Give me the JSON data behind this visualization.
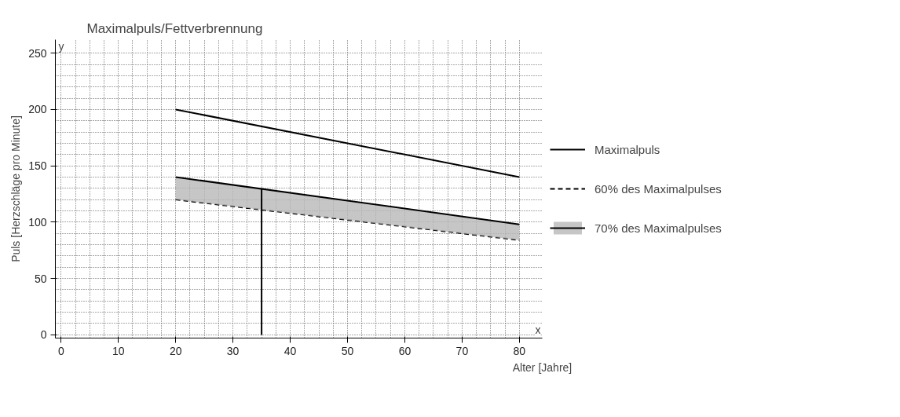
{
  "chart_data": {
    "type": "line",
    "title": "Maximalpuls/Fettverbrennung",
    "xlabel": "Alter [Jahre]",
    "ylabel": "Puls [Herzschläge pro Minute]",
    "annotations": [
      "y",
      "x"
    ],
    "x": [
      20,
      80
    ],
    "series": [
      {
        "name": "Maximalpuls",
        "color": "#000000",
        "values": [
          200,
          140
        ]
      },
      {
        "name": "60% des Maximalpulses",
        "color": "#000000",
        "values": [
          120,
          84
        ],
        "line_style": "dashed"
      },
      {
        "name": "70% des Maximalpulses",
        "color": "#000000",
        "values": [
          140,
          98
        ],
        "lower": [
          120,
          84
        ],
        "upper": [
          140,
          98
        ]
      },
      {
        "color": "#000000",
        "x": [
          35,
          35
        ],
        "values": [
          0,
          130
        ]
      }
    ],
    "xlim": [
      -1,
      84
    ],
    "ylim": [
      -3,
      262
    ],
    "xticks": [
      0,
      10,
      20,
      30,
      40,
      50,
      60,
      70,
      80
    ],
    "yticks": [
      0,
      50,
      100,
      150,
      200,
      250
    ],
    "grid": true,
    "legend": "right",
    "line_style": "solid",
    "marker": "none"
  }
}
